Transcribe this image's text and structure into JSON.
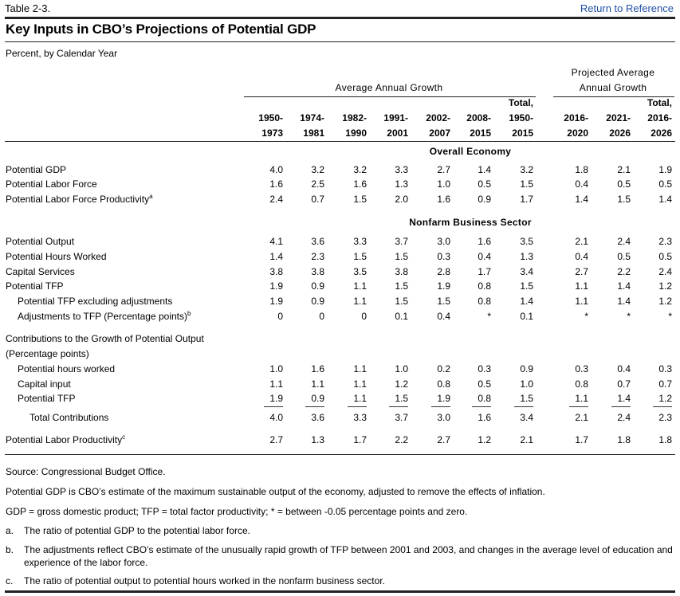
{
  "header": {
    "table_number": "Table 2-3.",
    "return_link": "Return to Reference",
    "title": "Key Inputs in CBO’s Projections of Potential GDP",
    "unit": "Percent, by Calendar Year"
  },
  "column_groups": {
    "historical": "Average Annual Growth",
    "projected_line1": "Projected Average",
    "projected_line2": "Annual Growth"
  },
  "columns": [
    [
      "",
      "1950-",
      "1973"
    ],
    [
      "",
      "1974-",
      "1981"
    ],
    [
      "",
      "1982-",
      "1990"
    ],
    [
      "",
      "1991-",
      "2001"
    ],
    [
      "",
      "2002-",
      "2007"
    ],
    [
      "",
      "2008-",
      "2015"
    ],
    [
      "Total,",
      "1950-",
      "2015"
    ],
    [
      "",
      "2016-",
      "2020"
    ],
    [
      "",
      "2021-",
      "2026"
    ],
    [
      "Total,",
      "2016-",
      "2026"
    ]
  ],
  "sections": {
    "overall": "Overall Economy",
    "nonfarm": "Nonfarm Business Sector"
  },
  "rows": [
    {
      "label": "Potential GDP",
      "values": [
        "4.0",
        "3.2",
        "3.2",
        "3.3",
        "2.7",
        "1.4",
        "3.2",
        "1.8",
        "2.1",
        "1.9"
      ]
    },
    {
      "label": "Potential Labor Force",
      "values": [
        "1.6",
        "2.5",
        "1.6",
        "1.3",
        "1.0",
        "0.5",
        "1.5",
        "0.4",
        "0.5",
        "0.5"
      ]
    },
    {
      "label": "Potential Labor Force Productivity",
      "sup": "a",
      "values": [
        "2.4",
        "0.7",
        "1.5",
        "2.0",
        "1.6",
        "0.9",
        "1.7",
        "1.4",
        "1.5",
        "1.4"
      ]
    },
    {
      "label": "Potential Output",
      "values": [
        "4.1",
        "3.6",
        "3.3",
        "3.7",
        "3.0",
        "1.6",
        "3.5",
        "2.1",
        "2.4",
        "2.3"
      ]
    },
    {
      "label": "Potential Hours Worked",
      "values": [
        "1.4",
        "2.3",
        "1.5",
        "1.5",
        "0.3",
        "0.4",
        "1.3",
        "0.4",
        "0.5",
        "0.5"
      ]
    },
    {
      "label": "Capital Services",
      "values": [
        "3.8",
        "3.8",
        "3.5",
        "3.8",
        "2.8",
        "1.7",
        "3.4",
        "2.7",
        "2.2",
        "2.4"
      ]
    },
    {
      "label": "Potential TFP",
      "values": [
        "1.9",
        "0.9",
        "1.1",
        "1.5",
        "1.9",
        "0.8",
        "1.5",
        "1.1",
        "1.4",
        "1.2"
      ]
    },
    {
      "label": "Potential TFP excluding adjustments",
      "values": [
        "1.9",
        "0.9",
        "1.1",
        "1.5",
        "1.5",
        "0.8",
        "1.4",
        "1.1",
        "1.4",
        "1.2"
      ]
    },
    {
      "label": "Adjustments to TFP (Percentage points)",
      "sup": "b",
      "values": [
        "0",
        "0",
        "0",
        "0.1",
        "0.4",
        "*",
        "0.1",
        "*",
        "*",
        "*"
      ]
    },
    {
      "label": "Contributions to the Growth of Potential Output",
      "values": []
    },
    {
      "label": "(Percentage points)",
      "values": []
    },
    {
      "label": "Potential hours worked",
      "values": [
        "1.0",
        "1.6",
        "1.1",
        "1.0",
        "0.2",
        "0.3",
        "0.9",
        "0.3",
        "0.4",
        "0.3"
      ]
    },
    {
      "label": "Capital input",
      "values": [
        "1.1",
        "1.1",
        "1.1",
        "1.2",
        "0.8",
        "0.5",
        "1.0",
        "0.8",
        "0.7",
        "0.7"
      ]
    },
    {
      "label": "Potential TFP",
      "values": [
        "1.9",
        "0.9",
        "1.1",
        "1.5",
        "1.9",
        "0.8",
        "1.5",
        "1.1",
        "1.4",
        "1.2"
      ]
    },
    {
      "label": "Total Contributions",
      "values": [
        "4.0",
        "3.6",
        "3.3",
        "3.7",
        "3.0",
        "1.6",
        "3.4",
        "2.1",
        "2.4",
        "2.3"
      ]
    },
    {
      "label": "Potential Labor Productivity",
      "sup": "c",
      "values": [
        "2.7",
        "1.3",
        "1.7",
        "2.2",
        "2.7",
        "1.2",
        "2.1",
        "1.7",
        "1.8",
        "1.8"
      ]
    }
  ],
  "notes": {
    "source": "Source: Congressional Budget Office.",
    "definition": "Potential GDP is CBO’s estimate of the maximum sustainable output of the economy, adjusted to remove the effects of inflation.",
    "abbrev": "GDP = gross domestic product; TFP = total factor productivity; * = between -0.05 percentage points and zero.",
    "a_mark": "a.",
    "a_text": "The ratio of potential GDP to the potential labor force.",
    "b_mark": "b.",
    "b_text": "The adjustments reflect CBO’s estimate of the unusually rapid growth of TFP between 2001 and 2003, and changes in the average level of education and experience of the labor force.",
    "c_mark": "c.",
    "c_text": "The ratio of potential output to potential hours worked in the nonfarm business sector."
  }
}
